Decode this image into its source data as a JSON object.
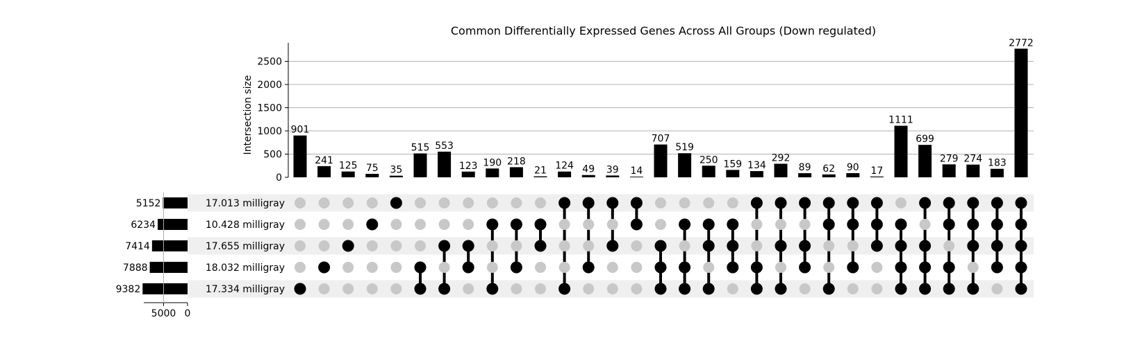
{
  "chart_data": {
    "type": "upset",
    "title": "Common Differentially Expressed Genes Across All Groups (Down regulated)",
    "ylabel": "Intersection size",
    "ylim": [
      0,
      2900
    ],
    "yticks": [
      0,
      500,
      1000,
      1500,
      2000,
      2500
    ],
    "grid": true,
    "sets": [
      {
        "name": "17.013 milligray",
        "size": 5152
      },
      {
        "name": "10.428 milligray",
        "size": 6234
      },
      {
        "name": "17.655 milligray",
        "size": 7414
      },
      {
        "name": "18.032 milligray",
        "size": 7888
      },
      {
        "name": "17.334 milligray",
        "size": 9382
      }
    ],
    "set_size_axis": {
      "ticks": [
        "5000",
        "0"
      ],
      "max": 10000
    },
    "intersections": [
      {
        "members": [
          4
        ],
        "size": 901
      },
      {
        "members": [
          3
        ],
        "size": 241
      },
      {
        "members": [
          2
        ],
        "size": 125
      },
      {
        "members": [
          1
        ],
        "size": 75
      },
      {
        "members": [
          0
        ],
        "size": 35
      },
      {
        "members": [
          3,
          4
        ],
        "size": 515
      },
      {
        "members": [
          2,
          4
        ],
        "size": 553
      },
      {
        "members": [
          2,
          3
        ],
        "size": 123
      },
      {
        "members": [
          1,
          4
        ],
        "size": 190
      },
      {
        "members": [
          1,
          3
        ],
        "size": 218
      },
      {
        "members": [
          1,
          2
        ],
        "size": 21
      },
      {
        "members": [
          0,
          4
        ],
        "size": 124
      },
      {
        "members": [
          0,
          3
        ],
        "size": 49
      },
      {
        "members": [
          0,
          2
        ],
        "size": 39
      },
      {
        "members": [
          0,
          1
        ],
        "size": 14
      },
      {
        "members": [
          2,
          3,
          4
        ],
        "size": 707
      },
      {
        "members": [
          1,
          3,
          4
        ],
        "size": 519
      },
      {
        "members": [
          1,
          2,
          4
        ],
        "size": 250
      },
      {
        "members": [
          1,
          2,
          3
        ],
        "size": 159
      },
      {
        "members": [
          0,
          3,
          4
        ],
        "size": 134
      },
      {
        "members": [
          0,
          2,
          4
        ],
        "size": 292
      },
      {
        "members": [
          0,
          2,
          3
        ],
        "size": 89
      },
      {
        "members": [
          0,
          1,
          4
        ],
        "size": 62
      },
      {
        "members": [
          0,
          1,
          3
        ],
        "size": 90
      },
      {
        "members": [
          0,
          1,
          2
        ],
        "size": 17
      },
      {
        "members": [
          1,
          2,
          3,
          4
        ],
        "size": 1111
      },
      {
        "members": [
          0,
          2,
          3,
          4
        ],
        "size": 699
      },
      {
        "members": [
          0,
          1,
          3,
          4
        ],
        "size": 279
      },
      {
        "members": [
          0,
          1,
          2,
          4
        ],
        "size": 274
      },
      {
        "members": [
          0,
          1,
          2,
          3
        ],
        "size": 183
      },
      {
        "members": [
          0,
          1,
          2,
          3,
          4
        ],
        "size": 2772
      }
    ],
    "colors": {
      "bar": "#000000",
      "dot_active": "#000000",
      "dot_inactive": "#c8c8c8",
      "stripe": "#efefef",
      "grid": "#b0b0b0"
    }
  }
}
